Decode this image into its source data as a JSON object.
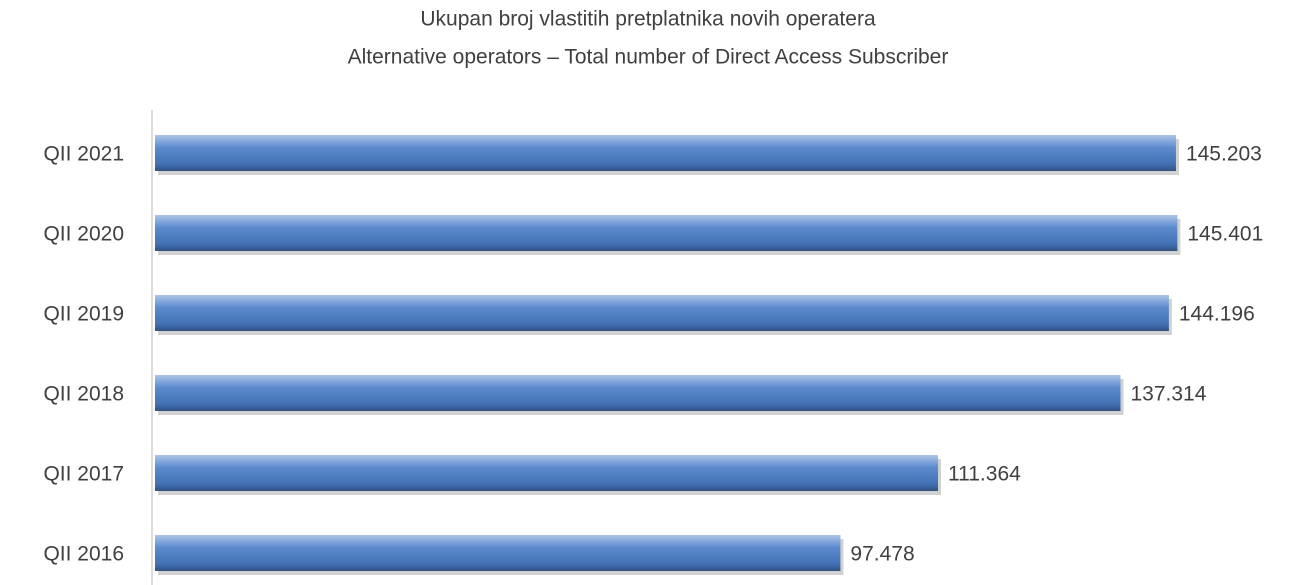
{
  "chart_data": {
    "type": "bar",
    "orientation": "horizontal",
    "title": "Ukupan broj vlastitih pretplatnika novih operatera",
    "subtitle": "Alternative operators – Total number of Direct Access Subscriber",
    "categories": [
      "QII 2021",
      "QII 2020",
      "QII 2019",
      "QII 2018",
      "QII 2017",
      "QII 2016"
    ],
    "values": [
      145203,
      145401,
      144196,
      137314,
      111364,
      97478
    ],
    "value_labels": [
      "145.203",
      "145.401",
      "144.196",
      "137.314",
      "111.364",
      "97.478"
    ],
    "color": "#4a7fc8",
    "xlim": [
      0,
      160000
    ]
  }
}
